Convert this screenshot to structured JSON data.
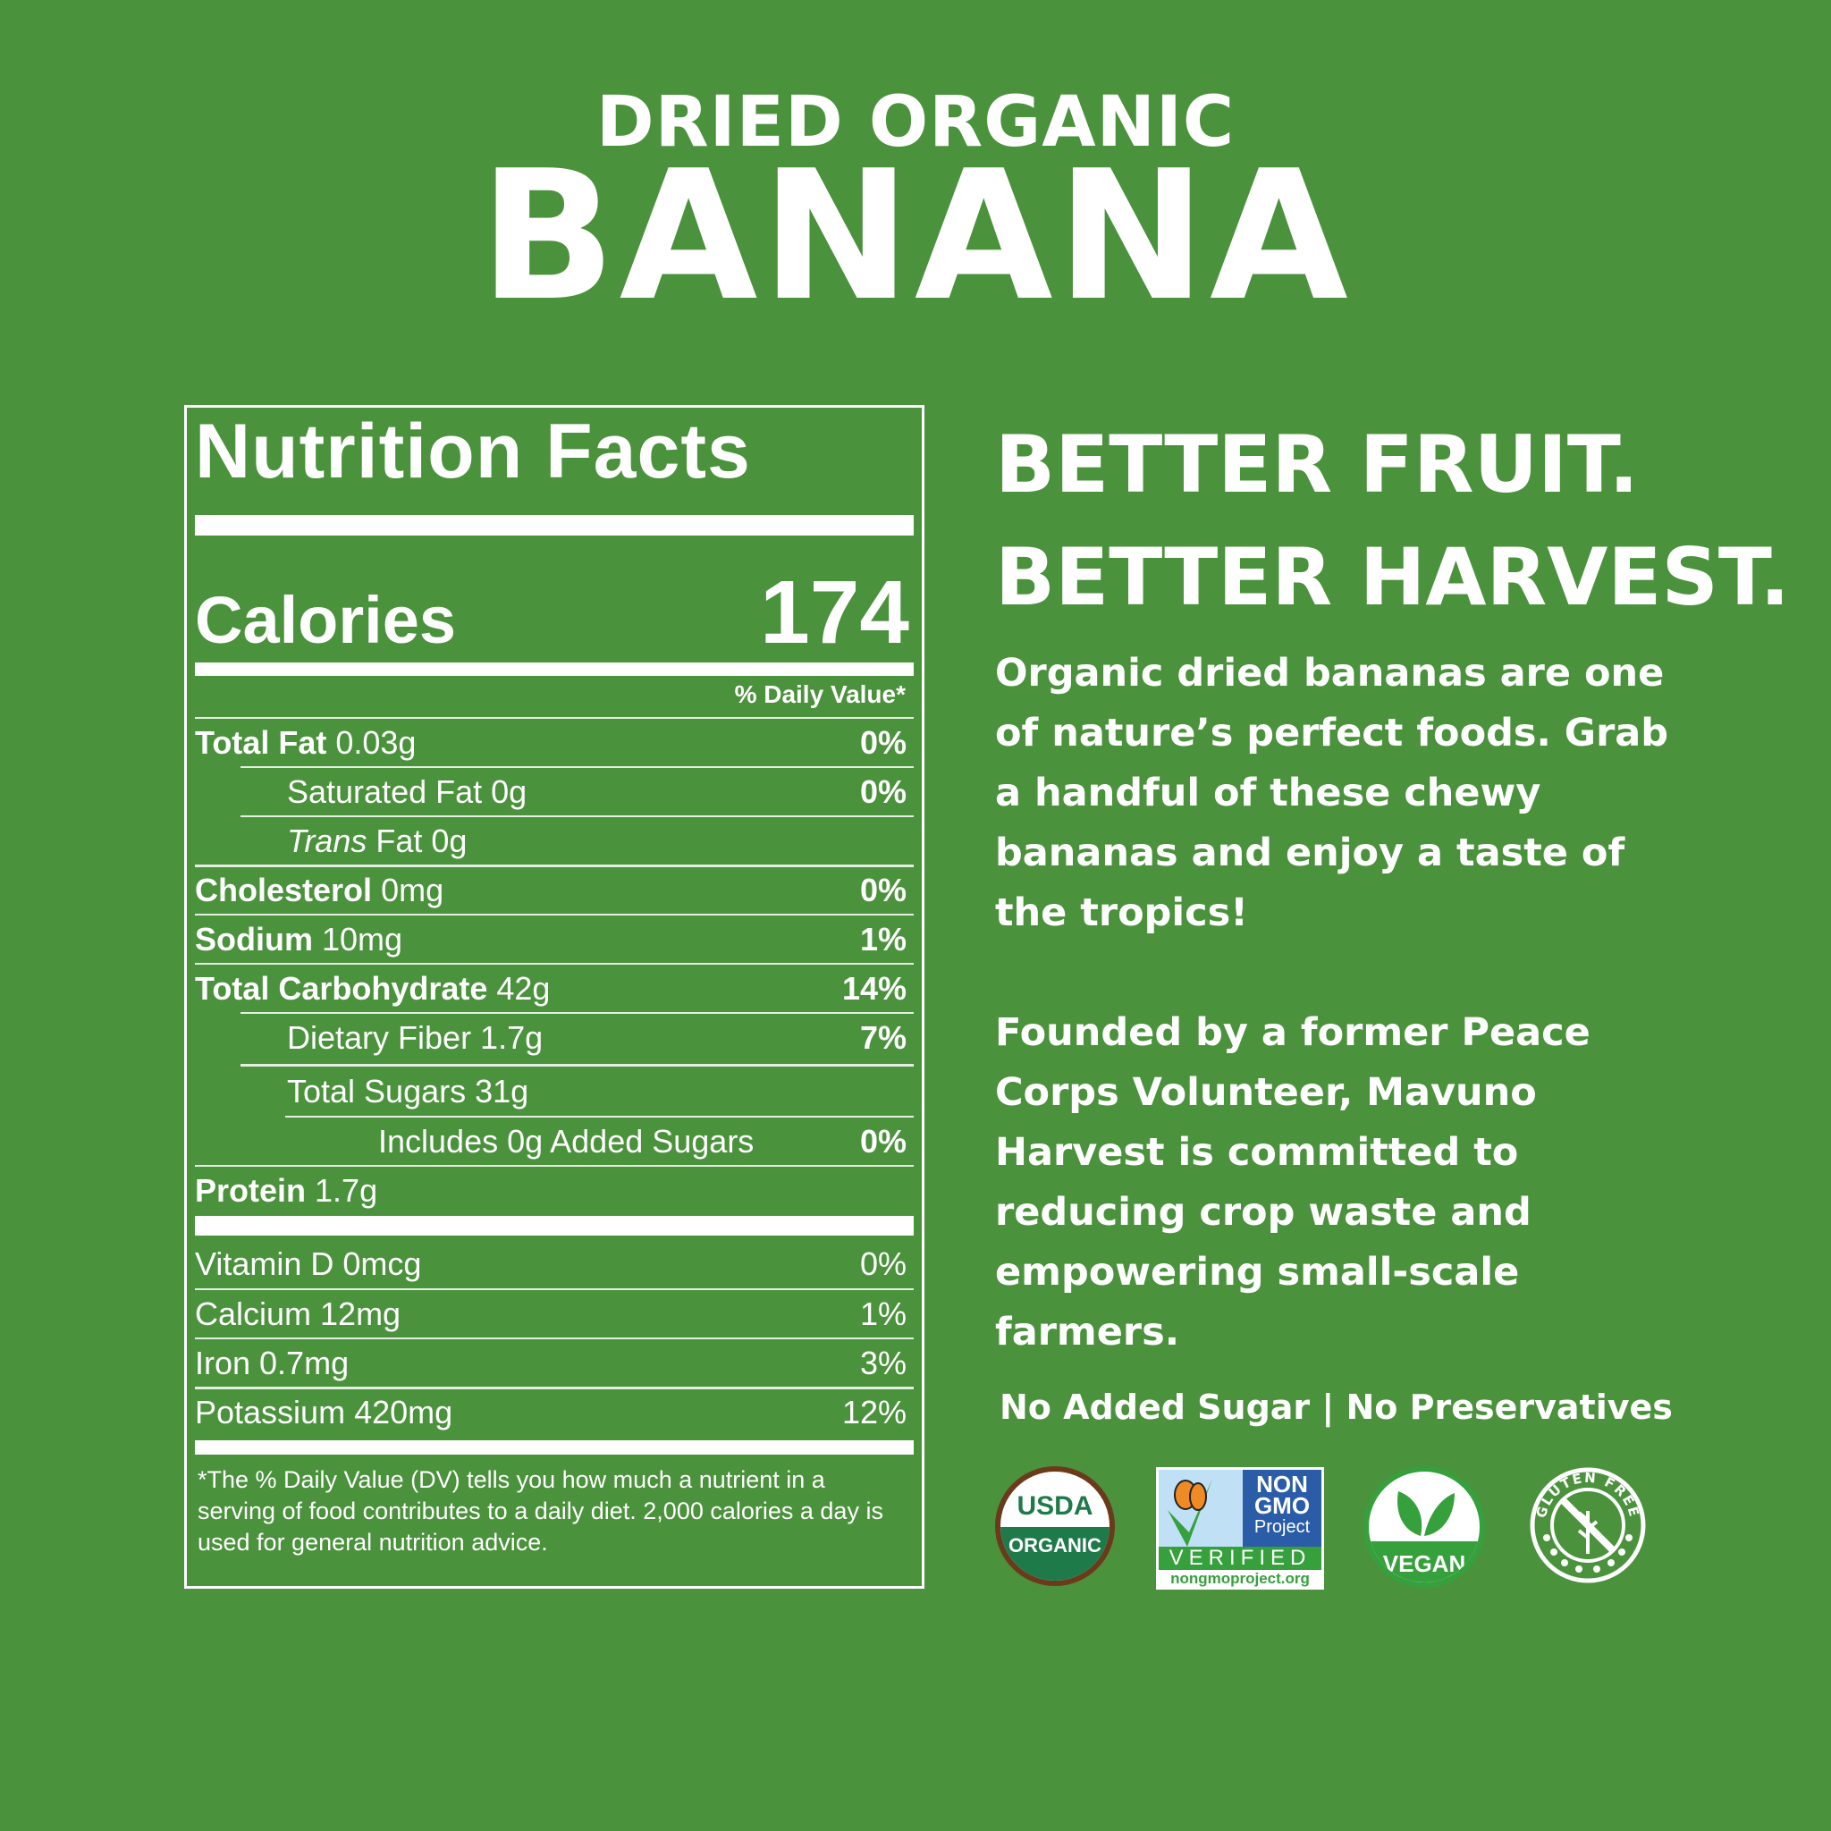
{
  "header": {
    "subtitle": "DRIED ORGANIC",
    "title": "BANANA"
  },
  "nutrition": {
    "title": "Nutrition Facts",
    "calories_label": "Calories",
    "calories_value": "174",
    "dv_header": "% Daily Value*",
    "rows": [
      {
        "name": "Total Fat",
        "amount": "0.03g",
        "dv": "0%"
      },
      {
        "name": "Saturated Fat 0g",
        "dv": "0%"
      },
      {
        "name_italic": "Trans",
        "name": " Fat 0g",
        "dv": ""
      },
      {
        "name": "Cholesterol",
        "amount": "0mg",
        "dv": "0%"
      },
      {
        "name": "Sodium",
        "amount": "10mg",
        "dv": "1%"
      },
      {
        "name": "Total Carbohydrate",
        "amount": "42g",
        "dv": "14%"
      },
      {
        "name": "Dietary Fiber 1.7g",
        "dv": "7%"
      },
      {
        "name": "Total Sugars 31g",
        "dv": ""
      },
      {
        "name": "Includes 0g Added Sugars",
        "dv": "0%"
      },
      {
        "name": "Protein",
        "amount": "1.7g",
        "dv": ""
      }
    ],
    "vitamins": [
      {
        "name": "Vitamin D 0mcg",
        "dv": "0%"
      },
      {
        "name": "Calcium 12mg",
        "dv": "1%"
      },
      {
        "name": "Iron 0.7mg",
        "dv": "3%"
      },
      {
        "name": "Potassium 420mg",
        "dv": "12%"
      }
    ],
    "footnote": "*The % Daily Value (DV) tells you how much a nutrient in a serving of food contributes to a daily diet. 2,000 calories a day is used for general nutrition advice."
  },
  "right": {
    "headline1": "BETTER FRUIT.",
    "headline2": "BETTER HARVEST.",
    "para1": "Organic dried bananas are one of nature’s perfect foods. Grab a handful of these chewy bananas and enjoy a taste of the tropics!",
    "para2": "Founded by a former Peace Corps Volunteer, Mavuno Harvest is committed to reducing crop waste and empowering small-scale farmers.",
    "claims": "No Added Sugar | No Preservatives"
  },
  "badges": {
    "usda": {
      "line1": "USDA",
      "line2": "ORGANIC"
    },
    "nongmo": {
      "line1": "NON",
      "line2": "GMO",
      "line3": "Project",
      "verified": "VERIFIED",
      "url": "nongmoproject.org"
    },
    "vegan": {
      "label": "VEGAN"
    },
    "gluten": {
      "label": "GLUTEN FREE"
    }
  },
  "colors": {
    "background": "#4b923c",
    "usda_green": "#1f7a4a",
    "usda_brown": "#6b3a1a",
    "nongmo_blue": "#2a5ca8",
    "nongmo_green": "#36a03c",
    "nongmo_sky": "#bfe0f5"
  }
}
